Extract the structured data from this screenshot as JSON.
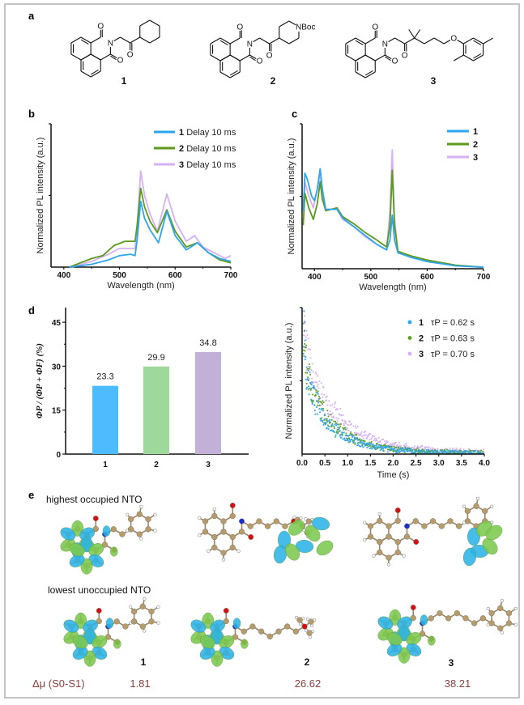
{
  "panels": {
    "a": "a",
    "b": "b",
    "c": "c",
    "d": "d",
    "e": "e"
  },
  "structures": {
    "compounds": [
      {
        "label": "1",
        "atoms": {
          "o": "O",
          "n": "N"
        }
      },
      {
        "label": "2",
        "atoms": {
          "o": "O",
          "n": "N",
          "nboc": "NBoc"
        }
      },
      {
        "label": "3",
        "atoms": {
          "o": "O",
          "n": "N"
        }
      }
    ]
  },
  "colors": {
    "series1": "#2ea6ef",
    "series2": "#5b9a1a",
    "series3": "#d6b0f2",
    "bar1": "#4dbcff",
    "bar2": "#9ed89a",
    "bar3": "#c2b0d8",
    "orbital_positive": "#2bb3e6",
    "orbital_negative": "#7cc84e",
    "delta_mu": "#8a3d3d"
  },
  "chart_data": [
    {
      "type": "line",
      "panel": "b",
      "xlabel": "Wavelength (nm)",
      "ylabel": "Normalized PL intensity (a.u.)",
      "xlim": [
        377,
        700
      ],
      "ylim": [
        0,
        1
      ],
      "x_ticks": [
        "400",
        "500",
        "600",
        "700"
      ],
      "legend_placement": "top-right",
      "series": [
        {
          "name": "1",
          "label": "Delay 10 ms",
          "points": [
            [
              410,
              0
            ],
            [
              450,
              0.02
            ],
            [
              480,
              0.05
            ],
            [
              500,
              0.08
            ],
            [
              520,
              0.09
            ],
            [
              528,
              0.08
            ],
            [
              532,
              0.2
            ],
            [
              538,
              0.46
            ],
            [
              545,
              0.34
            ],
            [
              555,
              0.26
            ],
            [
              570,
              0.17
            ],
            [
              585,
              0.39
            ],
            [
              600,
              0.22
            ],
            [
              620,
              0.12
            ],
            [
              640,
              0.17
            ],
            [
              660,
              0.1
            ],
            [
              680,
              0.06
            ],
            [
              700,
              0.04
            ]
          ]
        },
        {
          "name": "2",
          "label": "Delay 10 ms",
          "points": [
            [
              410,
              0
            ],
            [
              450,
              0.06
            ],
            [
              470,
              0.08
            ],
            [
              490,
              0.15
            ],
            [
              510,
              0.18
            ],
            [
              528,
              0.18
            ],
            [
              532,
              0.3
            ],
            [
              538,
              0.55
            ],
            [
              545,
              0.42
            ],
            [
              555,
              0.32
            ],
            [
              568,
              0.24
            ],
            [
              585,
              0.4
            ],
            [
              600,
              0.25
            ],
            [
              620,
              0.14
            ],
            [
              640,
              0.17
            ],
            [
              660,
              0.1
            ],
            [
              680,
              0.05
            ],
            [
              700,
              0.03
            ]
          ]
        },
        {
          "name": "3",
          "label": "Delay 10 ms",
          "points": [
            [
              415,
              0
            ],
            [
              450,
              0.04
            ],
            [
              480,
              0.09
            ],
            [
              500,
              0.13
            ],
            [
              528,
              0.13
            ],
            [
              532,
              0.3
            ],
            [
              538,
              0.67
            ],
            [
              545,
              0.5
            ],
            [
              555,
              0.37
            ],
            [
              568,
              0.25
            ],
            [
              585,
              0.51
            ],
            [
              600,
              0.32
            ],
            [
              620,
              0.18
            ],
            [
              635,
              0.22
            ],
            [
              650,
              0.14
            ],
            [
              680,
              0.08
            ],
            [
              690,
              0.06
            ],
            [
              700,
              0.08
            ]
          ]
        }
      ]
    },
    {
      "type": "line",
      "panel": "c",
      "xlabel": "Wavelength (nm)",
      "ylabel": "Normalized PL intensity (a.u.)",
      "xlim": [
        378,
        700
      ],
      "ylim": [
        0,
        1
      ],
      "x_ticks": [
        "400",
        "500",
        "600",
        "700"
      ],
      "legend_placement": "top-right",
      "series": [
        {
          "name": "1",
          "points": [
            [
              380,
              0.4
            ],
            [
              383,
              0.66
            ],
            [
              387,
              0.62
            ],
            [
              395,
              0.5
            ],
            [
              400,
              0.47
            ],
            [
              405,
              0.55
            ],
            [
              410,
              0.69
            ],
            [
              414,
              0.55
            ],
            [
              420,
              0.41
            ],
            [
              430,
              0.41
            ],
            [
              440,
              0.41
            ],
            [
              450,
              0.35
            ],
            [
              470,
              0.29
            ],
            [
              490,
              0.23
            ],
            [
              510,
              0.17
            ],
            [
              528,
              0.13
            ],
            [
              534,
              0.2
            ],
            [
              538,
              0.37
            ],
            [
              542,
              0.2
            ],
            [
              548,
              0.11
            ],
            [
              570,
              0.08
            ],
            [
              600,
              0.05
            ],
            [
              650,
              0.02
            ],
            [
              700,
              0.01
            ]
          ]
        },
        {
          "name": "2",
          "points": [
            [
              380,
              0.3
            ],
            [
              383,
              0.52
            ],
            [
              390,
              0.42
            ],
            [
              398,
              0.34
            ],
            [
              405,
              0.45
            ],
            [
              410,
              0.6
            ],
            [
              414,
              0.48
            ],
            [
              420,
              0.4
            ],
            [
              440,
              0.42
            ],
            [
              450,
              0.36
            ],
            [
              470,
              0.31
            ],
            [
              490,
              0.25
            ],
            [
              510,
              0.2
            ],
            [
              528,
              0.15
            ],
            [
              534,
              0.3
            ],
            [
              538,
              0.68
            ],
            [
              542,
              0.3
            ],
            [
              548,
              0.12
            ],
            [
              570,
              0.09
            ],
            [
              600,
              0.06
            ],
            [
              650,
              0.025
            ],
            [
              700,
              0.01
            ]
          ]
        },
        {
          "name": "3",
          "points": [
            [
              380,
              0.35
            ],
            [
              383,
              0.6
            ],
            [
              390,
              0.5
            ],
            [
              398,
              0.42
            ],
            [
              405,
              0.55
            ],
            [
              410,
              0.66
            ],
            [
              414,
              0.5
            ],
            [
              420,
              0.41
            ],
            [
              440,
              0.41
            ],
            [
              450,
              0.34
            ],
            [
              470,
              0.29
            ],
            [
              490,
              0.22
            ],
            [
              510,
              0.17
            ],
            [
              528,
              0.13
            ],
            [
              534,
              0.4
            ],
            [
              538,
              0.82
            ],
            [
              542,
              0.35
            ],
            [
              548,
              0.12
            ],
            [
              570,
              0.08
            ],
            [
              600,
              0.05
            ],
            [
              650,
              0.02
            ],
            [
              700,
              0.01
            ]
          ]
        }
      ]
    },
    {
      "type": "bar",
      "panel": "d",
      "ylabel": "ΦP / (ΦP + ΦF) (%)",
      "categories": [
        "1",
        "2",
        "3"
      ],
      "values": [
        23.3,
        29.9,
        34.8
      ],
      "data_labels": [
        "23.3",
        "29.9",
        "34.8"
      ],
      "ylim": [
        0,
        50
      ],
      "y_ticks": [
        "0",
        "15",
        "30",
        "45"
      ]
    },
    {
      "type": "scatter",
      "panel": "d-right",
      "xlabel": "Time (s)",
      "ylabel": "Normalized PL intensity (a.u.)",
      "xlim": [
        0,
        4
      ],
      "ylim": [
        0,
        1
      ],
      "x_ticks": [
        "0.0",
        "0.5",
        "1.0",
        "1.5",
        "2.0",
        "2.5",
        "3.0",
        "3.5",
        "4.0"
      ],
      "legend_placement": "top-right",
      "series": [
        {
          "name": "1",
          "label": "τP = 0.62 s",
          "points": [
            [
              0,
              1.0
            ],
            [
              0.1,
              0.55
            ],
            [
              0.25,
              0.38
            ],
            [
              0.5,
              0.24
            ],
            [
              0.75,
              0.16
            ],
            [
              1.0,
              0.11
            ],
            [
              1.5,
              0.05
            ],
            [
              2.0,
              0.03
            ],
            [
              2.5,
              0.015
            ],
            [
              3.0,
              0.01
            ],
            [
              4.0,
              0.005
            ]
          ]
        },
        {
          "name": "2",
          "label": "τP = 0.63 s",
          "points": [
            [
              0,
              0.95
            ],
            [
              0.1,
              0.58
            ],
            [
              0.25,
              0.41
            ],
            [
              0.5,
              0.27
            ],
            [
              0.75,
              0.19
            ],
            [
              1.0,
              0.13
            ],
            [
              1.5,
              0.06
            ],
            [
              2.0,
              0.035
            ],
            [
              2.5,
              0.02
            ],
            [
              3.0,
              0.012
            ],
            [
              4.0,
              0.006
            ]
          ]
        },
        {
          "name": "3",
          "label": "τP = 0.70 s",
          "points": [
            [
              0,
              1.02
            ],
            [
              0.1,
              0.7
            ],
            [
              0.25,
              0.5
            ],
            [
              0.5,
              0.36
            ],
            [
              0.75,
              0.27
            ],
            [
              1.0,
              0.19
            ],
            [
              1.5,
              0.1
            ],
            [
              2.0,
              0.06
            ],
            [
              2.5,
              0.04
            ],
            [
              3.0,
              0.025
            ],
            [
              4.0,
              0.012
            ]
          ]
        }
      ]
    }
  ],
  "nto": {
    "row_labels": [
      "highest occupied NTO",
      "lowest unoccupied NTO"
    ],
    "compound_labels": [
      "1",
      "2",
      "3"
    ],
    "delta_mu_label": "Δμ (S0-S1)",
    "delta_mu_values": [
      "1.81",
      "26.62",
      "38.21"
    ]
  }
}
